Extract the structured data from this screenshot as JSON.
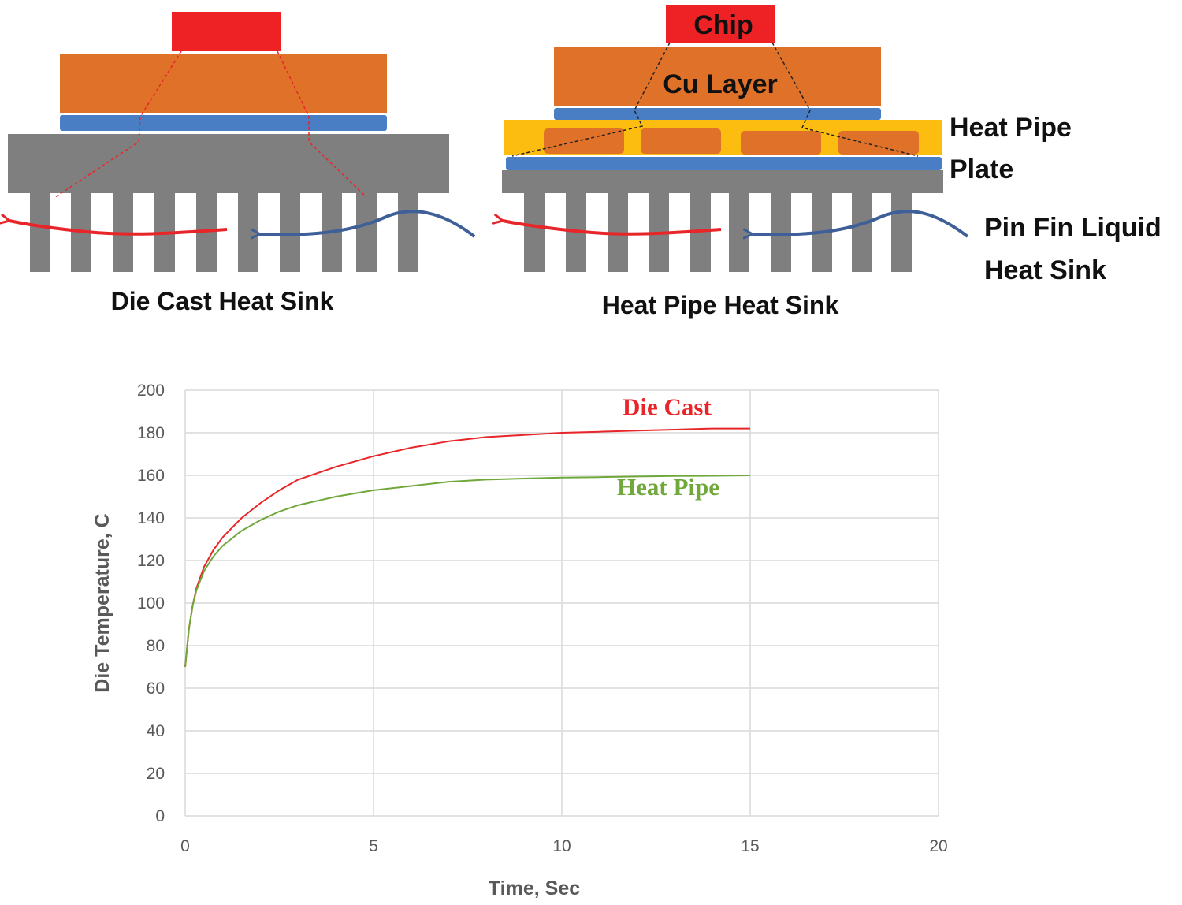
{
  "diagram": {
    "left_title": "Die Cast Heat Sink",
    "right_title": "Heat Pipe Heat Sink",
    "chip_label": "Chip",
    "cu_label": "Cu Layer",
    "heat_pipe_label_line1": "Heat Pipe",
    "heat_pipe_label_line2": "Plate",
    "pinfin_label_line1": "Pin Fin Liquid",
    "pinfin_label_line2": "Heat Sink",
    "colors": {
      "chip": "#ee2224",
      "cu": "#e07128",
      "tim": "#4a7ec4",
      "base": "#7f7f7f",
      "heat_pipe": "#fdbd10",
      "hot_flow": "#e8262a",
      "cold_flow": "#3f5f98"
    }
  },
  "chart_data": {
    "type": "line",
    "xlabel": "Time, Sec",
    "ylabel": "Die Temperature, C",
    "xlim": [
      0,
      20
    ],
    "ylim": [
      0,
      200
    ],
    "xticks": [
      0,
      5,
      10,
      15,
      20
    ],
    "yticks": [
      0,
      20,
      40,
      60,
      80,
      100,
      120,
      140,
      160,
      180,
      200
    ],
    "grid": true,
    "series": [
      {
        "name": "Die Cast",
        "color": "#e8262a",
        "x": [
          0,
          0.1,
          0.2,
          0.3,
          0.5,
          0.75,
          1,
          1.5,
          2,
          2.5,
          3,
          4,
          5,
          6,
          7,
          8,
          9,
          10,
          11,
          12,
          13,
          14,
          15
        ],
        "y": [
          70,
          88,
          99,
          107,
          117,
          125,
          131,
          140,
          147,
          153,
          158,
          164,
          169,
          173,
          176,
          178,
          179,
          180,
          180.5,
          181,
          181.5,
          182,
          182
        ]
      },
      {
        "name": "Heat Pipe",
        "color": "#70a83c",
        "x": [
          0,
          0.1,
          0.2,
          0.3,
          0.5,
          0.75,
          1,
          1.5,
          2,
          2.5,
          3,
          4,
          5,
          6,
          7,
          8,
          9,
          10,
          11,
          12,
          13,
          14,
          15
        ],
        "y": [
          70,
          88,
          99,
          106,
          115,
          122,
          127,
          134,
          139,
          143,
          146,
          150,
          153,
          155,
          157,
          158,
          158.5,
          159,
          159.2,
          159.5,
          159.7,
          159.8,
          160
        ]
      }
    ]
  }
}
